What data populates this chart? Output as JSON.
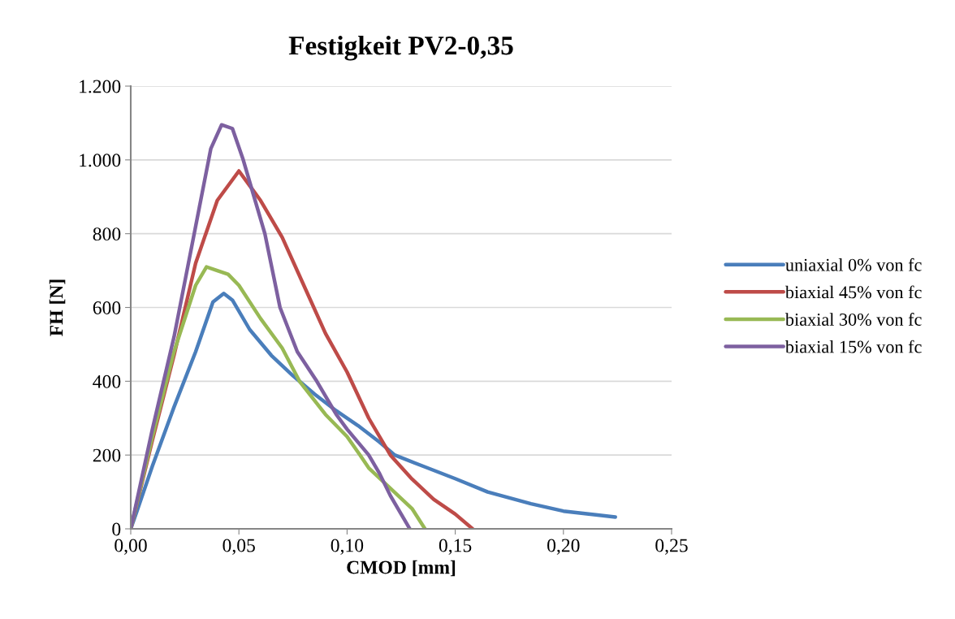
{
  "chart_data": {
    "type": "line",
    "title": "Festigkeit PV2-0,35",
    "xlabel": "CMOD [mm]",
    "ylabel": "FH [N]",
    "xlim": [
      0,
      0.25
    ],
    "xticks": [
      {
        "value": 0,
        "label": "0,00"
      },
      {
        "value": 0.05,
        "label": "0,05"
      },
      {
        "value": 0.1,
        "label": "0,10"
      },
      {
        "value": 0.15,
        "label": "0,15"
      },
      {
        "value": 0.2,
        "label": "0,20"
      },
      {
        "value": 0.25,
        "label": "0,25"
      }
    ],
    "ylim": [
      0,
      1200
    ],
    "yticks": [
      0,
      200,
      400,
      600,
      800,
      {
        "value": 1000,
        "label": "1.000"
      },
      {
        "value": 1200,
        "label": "1.200"
      }
    ],
    "grid": "y",
    "legend": "right",
    "marker": "none",
    "line_style": "solid",
    "series": [
      {
        "name": "uniaxial 0% von fc",
        "color": "#4a7ebb",
        "x": [
          0,
          0.003,
          0.01,
          0.02,
          0.03,
          0.038,
          0.043,
          0.047,
          0.055,
          0.065,
          0.075,
          0.085,
          0.095,
          0.105,
          0.115,
          0.122,
          0.135,
          0.15,
          0.165,
          0.175,
          0.185,
          0.2,
          0.215,
          0.224
        ],
        "values": [
          0,
          50,
          170,
          330,
          480,
          615,
          638,
          620,
          540,
          470,
          415,
          365,
          320,
          280,
          235,
          200,
          170,
          136,
          100,
          84,
          68,
          48,
          38,
          32
        ]
      },
      {
        "name": "biaxial 45% von fc",
        "color": "#be4b48",
        "x": [
          0,
          0.01,
          0.02,
          0.03,
          0.04,
          0.05,
          0.055,
          0.06,
          0.07,
          0.08,
          0.09,
          0.1,
          0.11,
          0.12,
          0.13,
          0.14,
          0.15,
          0.158
        ],
        "values": [
          0,
          240,
          470,
          720,
          890,
          970,
          930,
          890,
          790,
          660,
          530,
          425,
          300,
          200,
          135,
          80,
          40,
          0
        ]
      },
      {
        "name": "biaxial 30% von fc",
        "color": "#98b954",
        "x": [
          0,
          0.01,
          0.02,
          0.03,
          0.035,
          0.04,
          0.045,
          0.05,
          0.06,
          0.07,
          0.078,
          0.09,
          0.1,
          0.106,
          0.11,
          0.12,
          0.13,
          0.136
        ],
        "values": [
          0,
          250,
          480,
          660,
          710,
          700,
          690,
          660,
          570,
          490,
          400,
          310,
          250,
          200,
          165,
          110,
          55,
          0
        ]
      },
      {
        "name": "biaxial 15% von fc",
        "color": "#7d60a0",
        "x": [
          0,
          0.01,
          0.02,
          0.03,
          0.037,
          0.042,
          0.047,
          0.052,
          0.057,
          0.062,
          0.069,
          0.077,
          0.086,
          0.095,
          0.1,
          0.11,
          0.115,
          0.12,
          0.125,
          0.129
        ],
        "values": [
          0,
          270,
          520,
          820,
          1030,
          1095,
          1085,
          1000,
          900,
          800,
          600,
          480,
          400,
          310,
          270,
          200,
          150,
          90,
          40,
          0
        ]
      }
    ]
  }
}
